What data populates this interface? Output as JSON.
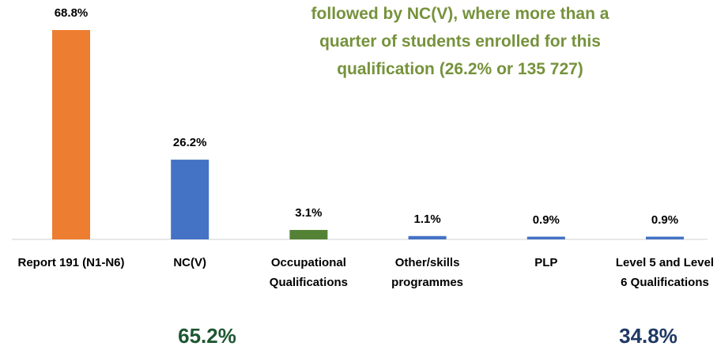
{
  "chart_data": {
    "type": "bar",
    "annotations": [
      "followed by NC(V), where more than a",
      "quarter of students enrolled for this",
      "qualification (26.2% or 135 727)"
    ],
    "categories": [
      "Report 191 (N1-N6)",
      "NC(V)",
      "Occupational Qualifications",
      "Other/skills programmes",
      "PLP",
      "Level 5 and Level 6 Qualifications"
    ],
    "values": [
      68.8,
      26.2,
      3.1,
      1.1,
      0.9,
      0.9
    ],
    "value_labels": [
      "68.8%",
      "26.2%",
      "3.1%",
      "1.1%",
      "0.9%",
      "0.9%"
    ],
    "colors": [
      "#ED7D31",
      "#4472C4",
      "#548235",
      "#4472C4",
      "#4472C4",
      "#4472C4"
    ],
    "totals": [
      {
        "text": "65.2%",
        "color": "#1E5631"
      },
      {
        "text": "34.8%",
        "color": "#1F3864"
      }
    ]
  }
}
